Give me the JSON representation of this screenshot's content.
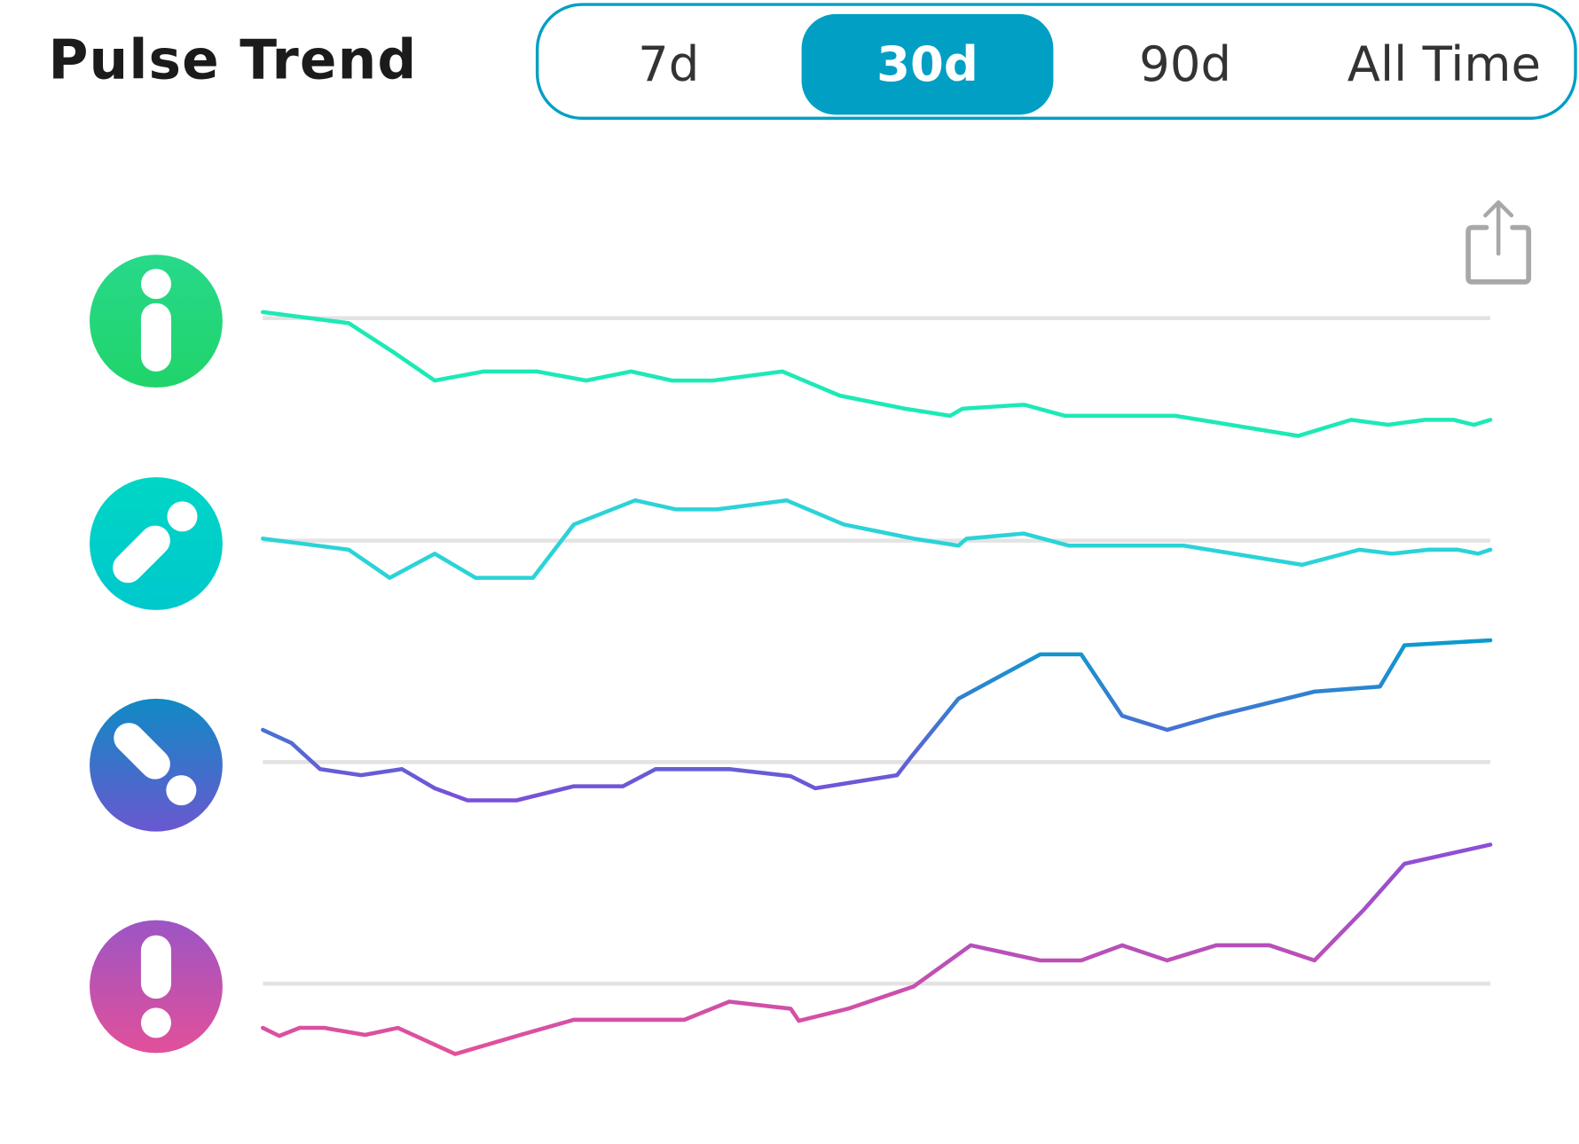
{
  "header": {
    "title": "Pulse Trend"
  },
  "range_selector": {
    "options": [
      "7d",
      "30d",
      "90d",
      "All Time"
    ],
    "selected": "30d",
    "accent_color": "#009fc3"
  },
  "share_button": {
    "icon": "share-icon"
  },
  "chart_data": {
    "type": "line",
    "title": "",
    "xlabel": "",
    "ylabel": "",
    "x_range_days": [
      0,
      30
    ],
    "grid": false,
    "legend": "icons-left",
    "note_baseline": 0,
    "series": [
      {
        "icon": "info-icon",
        "colors": [
          "#1de9b6",
          "#1de9b6"
        ],
        "icon_colors": [
          "#27d98a",
          "#20d46a"
        ],
        "points": [
          [
            0,
            0.6
          ],
          [
            2.1,
            -0.5
          ],
          [
            3.2,
            -3.4
          ],
          [
            4.2,
            -6.2
          ],
          [
            5.4,
            -5.3
          ],
          [
            6.7,
            -5.3
          ],
          [
            7.9,
            -6.2
          ],
          [
            9.0,
            -5.3
          ],
          [
            10.0,
            -6.2
          ],
          [
            11.0,
            -6.2
          ],
          [
            12.7,
            -5.3
          ],
          [
            14.1,
            -7.7
          ],
          [
            15.7,
            -9.0
          ],
          [
            16.8,
            -9.7
          ],
          [
            17.1,
            -9.0
          ],
          [
            18.6,
            -8.6
          ],
          [
            19.6,
            -9.7
          ],
          [
            22.3,
            -9.7
          ],
          [
            25.3,
            -11.7
          ],
          [
            26.6,
            -10.1
          ],
          [
            27.5,
            -10.6
          ],
          [
            28.4,
            -10.1
          ],
          [
            29.1,
            -10.1
          ],
          [
            29.6,
            -10.6
          ],
          [
            30.0,
            -10.1
          ]
        ]
      },
      {
        "icon": "trending-up-icon",
        "colors": [
          "#2bd3d8",
          "#2bd3d8"
        ],
        "icon_colors": [
          "#00d6c6",
          "#00c8cc"
        ],
        "points": [
          [
            0,
            0.2
          ],
          [
            2.1,
            -0.9
          ],
          [
            3.1,
            -3.7
          ],
          [
            4.2,
            -1.3
          ],
          [
            5.2,
            -3.7
          ],
          [
            6.6,
            -3.7
          ],
          [
            7.6,
            1.6
          ],
          [
            9.1,
            4.0
          ],
          [
            10.1,
            3.1
          ],
          [
            11.1,
            3.1
          ],
          [
            12.8,
            4.0
          ],
          [
            14.2,
            1.6
          ],
          [
            15.9,
            0.2
          ],
          [
            17.0,
            -0.5
          ],
          [
            17.2,
            0.2
          ],
          [
            18.6,
            0.7
          ],
          [
            19.7,
            -0.5
          ],
          [
            22.5,
            -0.5
          ],
          [
            25.4,
            -2.4
          ],
          [
            26.8,
            -0.9
          ],
          [
            27.6,
            -1.3
          ],
          [
            28.5,
            -0.9
          ],
          [
            29.2,
            -0.9
          ],
          [
            29.7,
            -1.3
          ],
          [
            30.0,
            -0.9
          ]
        ]
      },
      {
        "icon": "trending-down-icon",
        "colors": [
          "#0a9ccc",
          "#7a4fd8"
        ],
        "icon_colors": [
          "#0f8ac4",
          "#6a58d0"
        ],
        "points": [
          [
            0,
            3.2
          ],
          [
            0.7,
            1.9
          ],
          [
            1.4,
            -0.7
          ],
          [
            2.4,
            -1.3
          ],
          [
            3.4,
            -0.7
          ],
          [
            4.2,
            -2.6
          ],
          [
            5.0,
            -3.8
          ],
          [
            6.2,
            -3.8
          ],
          [
            7.6,
            -2.4
          ],
          [
            8.8,
            -2.4
          ],
          [
            9.6,
            -0.7
          ],
          [
            11.4,
            -0.7
          ],
          [
            12.9,
            -1.4
          ],
          [
            13.5,
            -2.6
          ],
          [
            15.5,
            -1.3
          ],
          [
            15.9,
            0.8
          ],
          [
            17.0,
            6.3
          ],
          [
            19.0,
            10.7
          ],
          [
            20.0,
            10.7
          ],
          [
            21.0,
            4.6
          ],
          [
            22.1,
            3.2
          ],
          [
            23.3,
            4.6
          ],
          [
            25.7,
            7.0
          ],
          [
            27.3,
            7.5
          ],
          [
            27.9,
            11.6
          ],
          [
            30.0,
            12.1
          ]
        ]
      },
      {
        "icon": "alert-icon",
        "colors": [
          "#8a4fd8",
          "#e4509a"
        ],
        "icon_colors": [
          "#9c55c4",
          "#e2509a"
        ],
        "points": [
          [
            0,
            -4.4
          ],
          [
            0.4,
            -5.2
          ],
          [
            0.9,
            -4.4
          ],
          [
            1.5,
            -4.4
          ],
          [
            2.5,
            -5.1
          ],
          [
            3.3,
            -4.4
          ],
          [
            4.7,
            -7.0
          ],
          [
            6.3,
            -5.1
          ],
          [
            7.6,
            -3.6
          ],
          [
            10.3,
            -3.6
          ],
          [
            11.4,
            -1.8
          ],
          [
            12.9,
            -2.5
          ],
          [
            13.1,
            -3.7
          ],
          [
            14.3,
            -2.5
          ],
          [
            15.9,
            -0.3
          ],
          [
            17.3,
            3.8
          ],
          [
            19.0,
            2.3
          ],
          [
            20.0,
            2.3
          ],
          [
            21.0,
            3.8
          ],
          [
            22.1,
            2.3
          ],
          [
            23.3,
            3.8
          ],
          [
            24.6,
            3.8
          ],
          [
            25.7,
            2.3
          ],
          [
            26.9,
            7.3
          ],
          [
            27.9,
            11.9
          ],
          [
            30.0,
            13.8
          ]
        ]
      }
    ]
  }
}
